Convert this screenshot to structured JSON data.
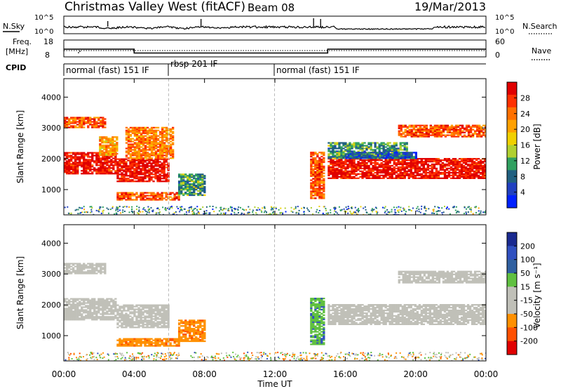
{
  "header": {
    "title": "Christmas Valley West (fitACF)",
    "beam": "Beam 08",
    "date": "19/Mar/2013"
  },
  "noise_panel": {
    "left_label": "N.Sky",
    "right_label": "N.Search",
    "ticks_left": [
      "10^5",
      "10^0"
    ],
    "ticks_right": [
      "10^5",
      "10^0"
    ]
  },
  "freq_panel": {
    "left_label_line1": "Freq.",
    "left_label_line2": "[MHz]",
    "ticks_left": [
      "18",
      "8"
    ],
    "right_label": "Nave",
    "ticks_right": [
      "60",
      "0"
    ],
    "freq_steps": [
      {
        "from": 0,
        "to": 4,
        "value": 12.6
      },
      {
        "from": 4,
        "to": 15,
        "value": 10.3
      },
      {
        "from": 15,
        "to": 24,
        "value": 12.6
      }
    ]
  },
  "cpid_panel": {
    "label": "CPID",
    "segments": [
      {
        "text": "normal (fast) 151 IF",
        "start": 0
      },
      {
        "text": "rbsp 201 IF",
        "start": 6
      },
      {
        "text": "normal (fast) 151 IF",
        "start": 12
      }
    ]
  },
  "x_axis": {
    "label": "Time UT",
    "ticks": [
      "00:00",
      "04:00",
      "08:00",
      "12:00",
      "16:00",
      "20:00",
      "00:00"
    ]
  },
  "power_colorbar": {
    "label": "Power [dB]",
    "ticks": [
      "28",
      "24",
      "20",
      "16",
      "12",
      "8",
      "4"
    ],
    "colors": [
      "#e00000",
      "#ff3000",
      "#ff7000",
      "#ffa000",
      "#f0d000",
      "#b0d030",
      "#30a060",
      "#206080",
      "#2040c0",
      "#0020ff"
    ]
  },
  "velocity_colorbar": {
    "label": "Velocity [m s⁻¹]",
    "ticks": [
      "200",
      "100",
      "50",
      "15",
      "-15",
      "-50",
      "-100",
      "-200"
    ],
    "colors": [
      "#1a2a90",
      "#3050c0",
      "#3060a0",
      "#60c040",
      "#c0c0b8",
      "#c0c0b8",
      "#ff9000",
      "#ff5000",
      "#e00000"
    ]
  },
  "chart_data": {
    "type": "heatmap",
    "title": "Christmas Valley West (fitACF)",
    "subtitle": "Beam 08",
    "date": "19/Mar/2013",
    "xlabel": "Time UT",
    "ylabel": "Slant Range [km]",
    "xlim": [
      0,
      24
    ],
    "ylim": [
      180,
      4600
    ],
    "y_ticks": [
      1000,
      2000,
      3000,
      4000
    ],
    "ytick_labels": [
      "1000",
      "2000",
      "3000",
      "4000"
    ],
    "dashed_time_markers": [
      6,
      12
    ],
    "panels": [
      {
        "name": "power",
        "colorbar_label": "Power [dB]",
        "colorbar_ticks": [
          4,
          8,
          12,
          16,
          20,
          24,
          28
        ],
        "echo_bands": [
          {
            "t0": 0,
            "t1": 3.0,
            "r0": 1500,
            "r1": 2200,
            "level": 28
          },
          {
            "t0": 0,
            "t1": 2.3,
            "r0": 3000,
            "r1": 3350,
            "level": 24
          },
          {
            "t0": 2.0,
            "t1": 3.0,
            "r0": 2100,
            "r1": 2700,
            "level": 20
          },
          {
            "t0": 3.0,
            "t1": 6.0,
            "r0": 1250,
            "r1": 2000,
            "level": 28
          },
          {
            "t0": 3.5,
            "t1": 6.2,
            "r0": 2000,
            "r1": 3000,
            "level": 22
          },
          {
            "t0": 3.0,
            "t1": 6.5,
            "r0": 650,
            "r1": 900,
            "level": 24
          },
          {
            "t0": 6.5,
            "t1": 8.0,
            "r0": 800,
            "r1": 1500,
            "level": 12
          },
          {
            "t0": 14.0,
            "t1": 14.8,
            "r0": 700,
            "r1": 2200,
            "level": 24
          },
          {
            "t0": 15.0,
            "t1": 24.0,
            "r0": 1350,
            "r1": 2000,
            "level": 28
          },
          {
            "t0": 15.0,
            "t1": 19.5,
            "r0": 2000,
            "r1": 2500,
            "level": 12
          },
          {
            "t0": 16.0,
            "t1": 20.0,
            "r0": 2000,
            "r1": 2200,
            "level": 8
          },
          {
            "t0": 19.0,
            "t1": 24.0,
            "r0": 2700,
            "r1": 3100,
            "level": 24
          }
        ]
      },
      {
        "name": "velocity",
        "colorbar_label": "Velocity [m s⁻¹]",
        "colorbar_ticks": [
          -200,
          -100,
          -50,
          -15,
          15,
          50,
          100,
          200
        ],
        "echo_bands": [
          {
            "t0": 0,
            "t1": 3.0,
            "r0": 1500,
            "r1": 2200,
            "value": 0
          },
          {
            "t0": 0,
            "t1": 2.3,
            "r0": 3000,
            "r1": 3350,
            "value": 0
          },
          {
            "t0": 3.0,
            "t1": 6.0,
            "r0": 1250,
            "r1": 2000,
            "value": 0
          },
          {
            "t0": 3.0,
            "t1": 6.5,
            "r0": 650,
            "r1": 900,
            "value": -40
          },
          {
            "t0": 6.5,
            "t1": 8.0,
            "r0": 800,
            "r1": 1500,
            "value": -40
          },
          {
            "t0": 14.0,
            "t1": 14.8,
            "r0": 700,
            "r1": 2200,
            "value": 40
          },
          {
            "t0": 15.0,
            "t1": 24.0,
            "r0": 1350,
            "r1": 2000,
            "value": 0
          },
          {
            "t0": 19.0,
            "t1": 24.0,
            "r0": 2700,
            "r1": 3100,
            "value": 0
          }
        ]
      }
    ]
  }
}
